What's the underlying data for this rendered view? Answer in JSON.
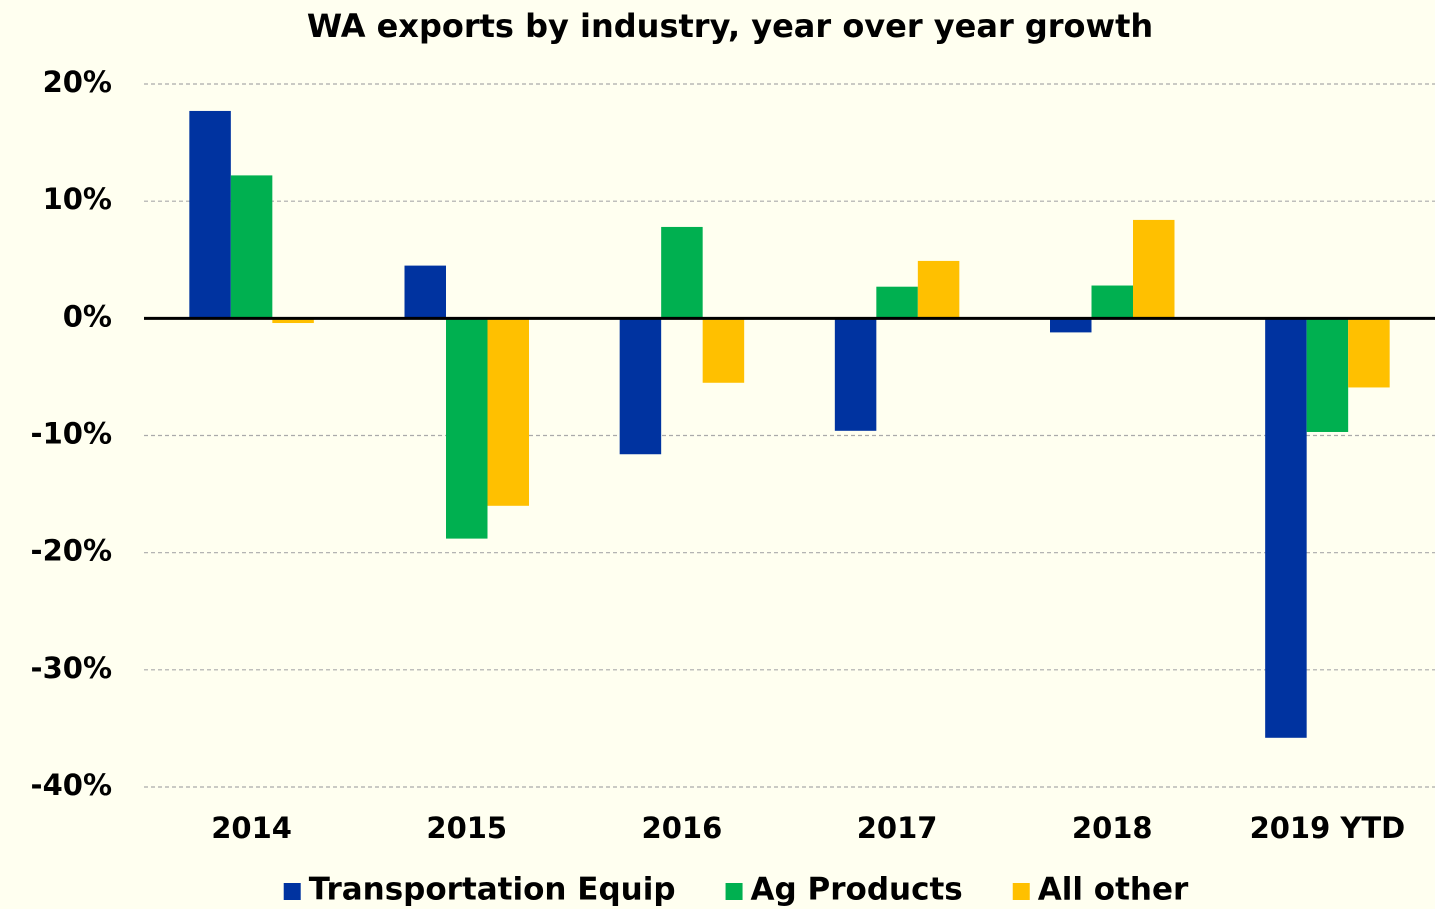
{
  "chart_data": {
    "type": "bar",
    "title": "WA exports by industry, year over year growth",
    "categories": [
      "2014",
      "2015",
      "2016",
      "2017",
      "2018",
      "2019 YTD"
    ],
    "series": [
      {
        "name": "Transportation Equip",
        "color": "#0033A0",
        "values": [
          17.7,
          4.5,
          -11.6,
          -9.6,
          -1.2,
          -35.8
        ]
      },
      {
        "name": "Ag Products",
        "color": "#00B050",
        "values": [
          12.2,
          -18.8,
          7.8,
          2.7,
          2.8,
          -9.7
        ]
      },
      {
        "name": "All other",
        "color": "#FFC000",
        "values": [
          -0.4,
          -16.0,
          -5.5,
          4.9,
          8.4,
          -5.9
        ]
      }
    ],
    "ylim": [
      -40,
      20
    ],
    "yticks": [
      {
        "value": 20,
        "label": "20%"
      },
      {
        "value": 10,
        "label": "10%"
      },
      {
        "value": 0,
        "label": "0%"
      },
      {
        "value": -10,
        "label": "-10%"
      },
      {
        "value": -20,
        "label": "-20%"
      },
      {
        "value": -30,
        "label": "-30%"
      },
      {
        "value": -40,
        "label": "-40%"
      }
    ],
    "grid": true,
    "legend": "bottom"
  }
}
